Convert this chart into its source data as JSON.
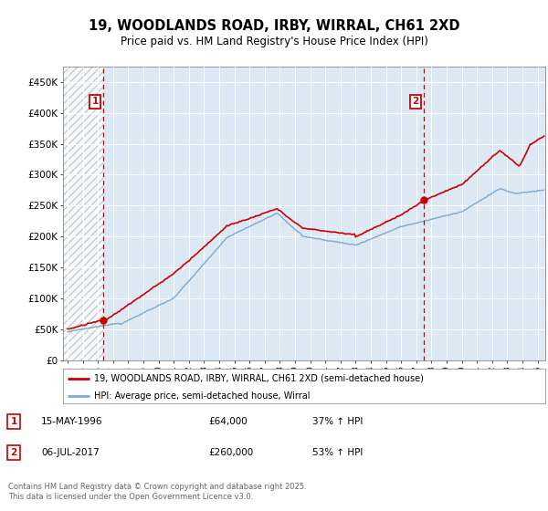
{
  "title": "19, WOODLANDS ROAD, IRBY, WIRRAL, CH61 2XD",
  "subtitle": "Price paid vs. HM Land Registry's House Price Index (HPI)",
  "background_color": "#ffffff",
  "plot_bg_color": "#dce9f5",
  "grid_color": "#ffffff",
  "transaction1": {
    "date": "15-MAY-1996",
    "price": 64000,
    "label": "37% ↑ HPI",
    "year": 1996.37
  },
  "transaction2": {
    "date": "06-JUL-2017",
    "price": 260000,
    "label": "53% ↑ HPI",
    "year": 2017.51
  },
  "ylim": [
    0,
    475000
  ],
  "xlim_start": 1993.7,
  "xlim_end": 2025.5,
  "yticks": [
    0,
    50000,
    100000,
    150000,
    200000,
    250000,
    300000,
    350000,
    400000,
    450000
  ],
  "ytick_labels": [
    "£0",
    "£50K",
    "£100K",
    "£150K",
    "£200K",
    "£250K",
    "£300K",
    "£350K",
    "£400K",
    "£450K"
  ],
  "xtick_years": [
    1994,
    1995,
    1996,
    1997,
    1998,
    1999,
    2000,
    2001,
    2002,
    2003,
    2004,
    2005,
    2006,
    2007,
    2008,
    2009,
    2010,
    2011,
    2012,
    2013,
    2014,
    2015,
    2016,
    2017,
    2018,
    2019,
    2020,
    2021,
    2022,
    2023,
    2024,
    2025
  ],
  "property_color": "#cc0000",
  "hpi_color": "#7aaad0",
  "footer": "Contains HM Land Registry data © Crown copyright and database right 2025.\nThis data is licensed under the Open Government Licence v3.0.",
  "legend1": "19, WOODLANDS ROAD, IRBY, WIRRAL, CH61 2XD (semi-detached house)",
  "legend2": "HPI: Average price, semi-detached house, Wirral"
}
